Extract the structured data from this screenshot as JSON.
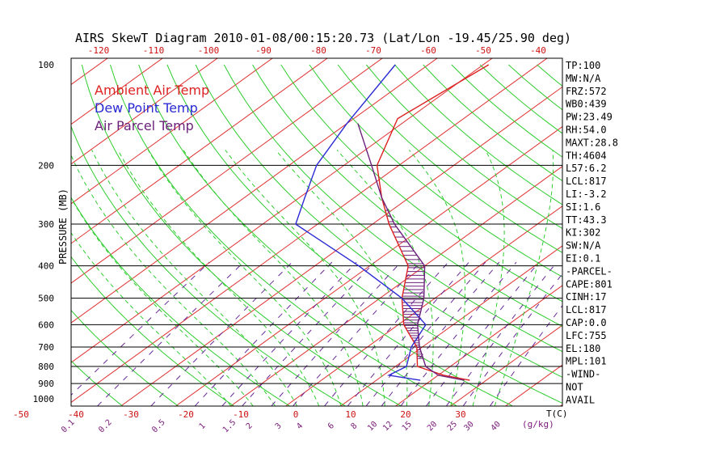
{
  "chart_data": {
    "type": "line",
    "title": "AIRS SkewT Diagram 2010-01-08/00:15:20.73 (Lat/Lon -19.45/25.90 deg)",
    "ylabel": "PRESSURE (MB)",
    "y_scale": "log",
    "ylim": [
      1000,
      100
    ],
    "pressure_ticks": [
      100,
      200,
      300,
      400,
      500,
      600,
      700,
      800,
      900,
      1000
    ],
    "top_temp_ticks": [
      -120,
      -110,
      -100,
      -90,
      -80,
      -70,
      -60,
      -50,
      -40
    ],
    "bottom_temp_ticks": [
      -50,
      -40,
      -30,
      -20,
      -10,
      0,
      10,
      20,
      30
    ],
    "bottom_temp_unit": "T(C)",
    "mixing_ratio_ticks": [
      "0.1",
      "0.2",
      "0.5",
      "1",
      "1.5",
      "2",
      "3",
      "4",
      "6",
      "8",
      "10",
      "12",
      "15",
      "20",
      "25",
      "30",
      "40"
    ],
    "mixing_ratio_unit": "(g/kg)",
    "grid": true,
    "legend": [
      {
        "name": "Ambient Air Temp",
        "color": "#dd2222"
      },
      {
        "name": "Dew Point Temp",
        "color": "#2a2ad4"
      },
      {
        "name": "Air Parcel Temp",
        "color": "#6b1f7a"
      }
    ],
    "series": [
      {
        "name": "Ambient Air Temp",
        "color": "#dd2222",
        "points": [
          [
            100,
            -49
          ],
          [
            145,
            -52
          ],
          [
            200,
            -44
          ],
          [
            250,
            -35
          ],
          [
            300,
            -27
          ],
          [
            400,
            -13
          ],
          [
            500,
            -6
          ],
          [
            600,
            1
          ],
          [
            700,
            9
          ],
          [
            800,
            14
          ],
          [
            850,
            21
          ],
          [
            880,
            27
          ]
        ]
      },
      {
        "name": "Dew Point Temp",
        "color": "#2a2ad4",
        "points": [
          [
            100,
            -66
          ],
          [
            150,
            -60
          ],
          [
            200,
            -55
          ],
          [
            250,
            -49
          ],
          [
            300,
            -44
          ],
          [
            400,
            -22
          ],
          [
            500,
            -6
          ],
          [
            600,
            5
          ],
          [
            700,
            8
          ],
          [
            800,
            12
          ],
          [
            850,
            11
          ],
          [
            880,
            18
          ]
        ]
      },
      {
        "name": "Air Parcel Temp",
        "color": "#6b1f7a",
        "points": [
          [
            150,
            -58
          ],
          [
            200,
            -45
          ],
          [
            250,
            -35
          ],
          [
            300,
            -26
          ],
          [
            400,
            -10
          ],
          [
            500,
            -2
          ],
          [
            600,
            3.5
          ],
          [
            700,
            9.5
          ],
          [
            800,
            15.5
          ],
          [
            850,
            20
          ],
          [
            880,
            26
          ]
        ]
      }
    ],
    "stats": [
      "TP:100",
      "MW:N/A",
      "FRZ:572",
      "WB0:439",
      "PW:23.49",
      "RH:54.0",
      "MAXT:28.8",
      "TH:4604",
      "L57:6.2",
      "LCL:817",
      "LI:-3.2",
      "SI:1.6",
      "TT:43.3",
      "KI:302",
      "SW:N/A",
      "EI:0.1",
      "-PARCEL-",
      "CAPE:801",
      "CINH:17",
      "LCL:817",
      "CAP:0.0",
      "LFC:755",
      "EL:180",
      "MPL:101",
      "-WIND-",
      "NOT",
      "AVAIL"
    ]
  }
}
